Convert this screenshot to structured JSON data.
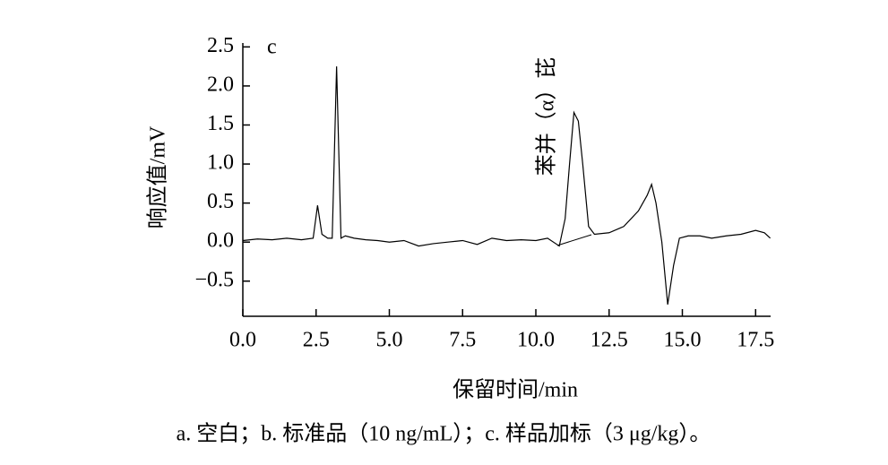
{
  "chart_data": {
    "type": "line",
    "panel_label": "c",
    "ylabel": "响应值/mV",
    "xlabel": "保留时间/min",
    "annotation": "苯并（α）芘",
    "caption": "a. 空白；b. 标准品（10 ng/mL）；c. 样品加标（3 μg/kg）。",
    "xlim": [
      0,
      18
    ],
    "ylim": [
      -0.95,
      2.55
    ],
    "xticks": [
      {
        "value": 0,
        "label": "0.0"
      },
      {
        "value": 2.5,
        "label": "2.5"
      },
      {
        "value": 5,
        "label": "5.0"
      },
      {
        "value": 7.5,
        "label": "7.5"
      },
      {
        "value": 10,
        "label": "10.0"
      },
      {
        "value": 12.5,
        "label": "12.5"
      },
      {
        "value": 15,
        "label": "15.0"
      },
      {
        "value": 17.5,
        "label": "17.5"
      }
    ],
    "yticks": [
      {
        "value": -0.5,
        "label": "−0.5"
      },
      {
        "value": 0,
        "label": "0.0"
      },
      {
        "value": 0.5,
        "label": "0.5"
      },
      {
        "value": 1,
        "label": "1.0"
      },
      {
        "value": 1.5,
        "label": "1.5"
      },
      {
        "value": 2,
        "label": "2.0"
      },
      {
        "value": 2.5,
        "label": "2.5"
      }
    ],
    "x": [
      0,
      0.5,
      1,
      1.5,
      2,
      2.4,
      2.55,
      2.7,
      2.9,
      3.05,
      3.2,
      3.35,
      3.5,
      3.8,
      4.2,
      4.6,
      5,
      5.5,
      6,
      6.5,
      7,
      7.5,
      8,
      8.5,
      9,
      9.5,
      10,
      10.4,
      10.8,
      11,
      11.15,
      11.3,
      11.45,
      11.6,
      11.8,
      12,
      12.5,
      13,
      13.5,
      13.8,
      13.95,
      14.1,
      14.3,
      14.5,
      14.7,
      14.9,
      15.2,
      15.6,
      16,
      16.5,
      17,
      17.5,
      17.8,
      18
    ],
    "series": [
      {
        "name": "c",
        "color": "#000000",
        "values": [
          0.02,
          0.04,
          0.03,
          0.05,
          0.03,
          0.05,
          0.47,
          0.1,
          0.05,
          0.05,
          2.25,
          0.05,
          0.08,
          0.05,
          0.03,
          0.02,
          0.0,
          0.02,
          -0.05,
          -0.02,
          0.0,
          0.02,
          -0.03,
          0.05,
          0.02,
          0.03,
          0.02,
          0.05,
          -0.05,
          0.3,
          1.0,
          1.66,
          1.55,
          1.0,
          0.2,
          0.1,
          0.12,
          0.2,
          0.4,
          0.6,
          0.74,
          0.5,
          0.0,
          -0.8,
          -0.3,
          0.05,
          0.08,
          0.08,
          0.05,
          0.08,
          0.1,
          0.15,
          0.12,
          0.05
        ]
      }
    ]
  }
}
